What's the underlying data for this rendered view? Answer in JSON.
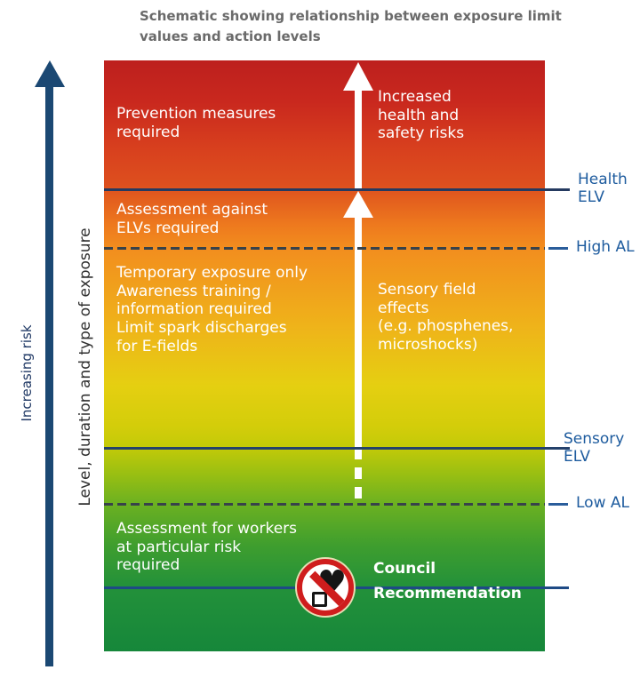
{
  "title": {
    "line1": "Schematic showing relationship between exposure limit",
    "line2": "values and action levels"
  },
  "axis": {
    "increasing_risk": "Increasing risk",
    "level_label": "Level, duration and type of exposure"
  },
  "zones": {
    "prevention": {
      "lines": [
        "Prevention measures",
        "required"
      ]
    },
    "increased": {
      "lines": [
        "Increased",
        "health and",
        "safety risks"
      ]
    },
    "assessment_elv": {
      "lines": [
        "Assessment against",
        "ELVs required"
      ]
    },
    "temporary": {
      "lines": [
        "Temporary exposure only",
        "Awareness training /",
        "information required",
        "Limit spark discharges",
        "for E-fields"
      ]
    },
    "sensory_effects": {
      "lines": [
        "Sensory field",
        "effects",
        "(e.g. phosphenes,",
        "microshocks)"
      ]
    },
    "workers": {
      "lines": [
        "Assessment for workers",
        "at particular risk",
        "required"
      ]
    },
    "council": {
      "lines": [
        "Council",
        "Recommendation"
      ]
    }
  },
  "levels": {
    "health": {
      "label_lines": [
        "Health",
        "ELV"
      ],
      "style": "solid"
    },
    "high": {
      "label_lines": [
        "High AL"
      ],
      "style": "dashed"
    },
    "sensory": {
      "label_lines": [
        "Sensory",
        "ELV"
      ],
      "style": "solid"
    },
    "low": {
      "label_lines": [
        "Low AL"
      ],
      "style": "dashed"
    }
  },
  "icon": {
    "name": "no-pacemaker-prohibition",
    "heart_glyph": "♥"
  },
  "colors": {
    "gradient_top_red": "#bd201e",
    "gradient_orange": "#f28e1e",
    "gradient_yellow": "#e5cf11",
    "gradient_bottom_green": "#16873a",
    "elv_line_navy": "#253a60",
    "council_line_blue": "#1e4a85",
    "level_label_blue": "#1d5b9e",
    "axis_arrow_navy": "#1b4873",
    "title_gray": "#6a6a6a",
    "zone_text_white": "#ffffff",
    "prohibition_red": "#cf1d1d"
  }
}
